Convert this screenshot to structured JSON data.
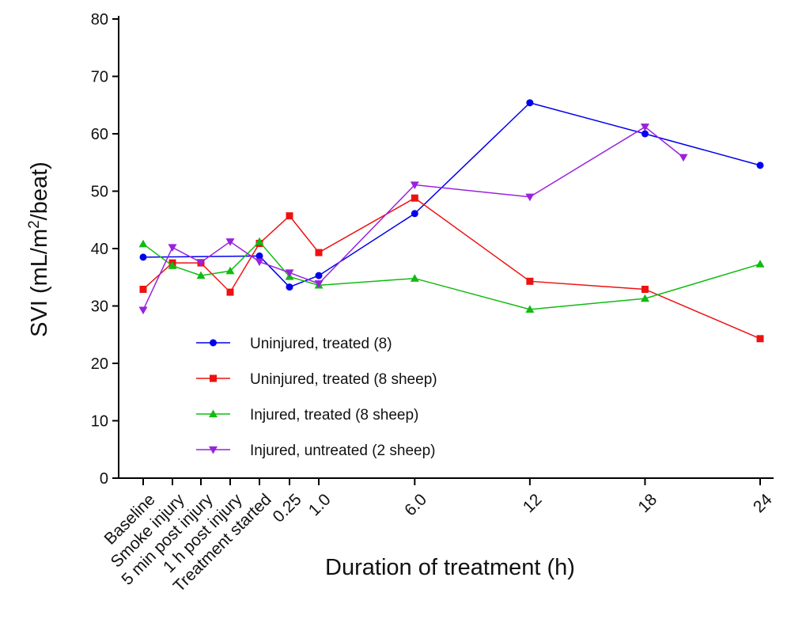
{
  "chart_data": {
    "type": "line",
    "title": "",
    "xlabel": "Duration of treatment (h)",
    "ylabel": {
      "prefix": "SVI (mL/m",
      "superscript": "2",
      "suffix": "/beat)"
    },
    "ylim": [
      0,
      80
    ],
    "y_ticks": [
      0,
      10,
      20,
      30,
      40,
      50,
      60,
      70,
      80
    ],
    "x_scale": "categorical-then-hours",
    "x_tick_labels": [
      "Baseline",
      "Smoke injury",
      "5 min post injury",
      "1 h post injury",
      "Treatment started",
      "0.25",
      "1.0",
      "6.0",
      "12",
      "18",
      "24"
    ],
    "grid": false,
    "legend_position": "center-left",
    "series": [
      {
        "name": "Uninjured, treated (8)",
        "color": "#0000ee",
        "marker": "circle",
        "points": [
          {
            "x": "Baseline",
            "y": 38.5
          },
          {
            "x": "Treatment started",
            "y": 38.7
          },
          {
            "x": "0.25",
            "y": 33.3
          },
          {
            "x": "1.0",
            "y": 35.3
          },
          {
            "x": "6.0",
            "y": 46.1
          },
          {
            "x": "12",
            "y": 65.4
          },
          {
            "x": "18",
            "y": 60.0
          },
          {
            "x": "24",
            "y": 54.5
          }
        ]
      },
      {
        "name": "Uninjured, treated (8 sheep)",
        "color": "#ee1111",
        "marker": "square",
        "points": [
          {
            "x": "Baseline",
            "y": 32.9
          },
          {
            "x": "Smoke injury",
            "y": 37.5
          },
          {
            "x": "5 min post injury",
            "y": 37.5
          },
          {
            "x": "1 h post injury",
            "y": 32.4
          },
          {
            "x": "Treatment started",
            "y": 40.9
          },
          {
            "x": "0.25",
            "y": 45.7
          },
          {
            "x": "1.0",
            "y": 39.3
          },
          {
            "x": "6.0",
            "y": 48.8
          },
          {
            "x": "12",
            "y": 34.3
          },
          {
            "x": "18",
            "y": 32.9
          },
          {
            "x": "24",
            "y": 24.3
          }
        ]
      },
      {
        "name": "Injured, treated (8 sheep)",
        "color": "#11bb11",
        "marker": "triangle-up",
        "points": [
          {
            "x": "Baseline",
            "y": 40.8
          },
          {
            "x": "Smoke injury",
            "y": 37.0
          },
          {
            "x": "5 min post injury",
            "y": 35.3
          },
          {
            "x": "1 h post injury",
            "y": 36.1
          },
          {
            "x": "Treatment started",
            "y": 41.2
          },
          {
            "x": "0.25",
            "y": 35.1
          },
          {
            "x": "1.0",
            "y": 33.6
          },
          {
            "x": "6.0",
            "y": 34.8
          },
          {
            "x": "12",
            "y": 29.4
          },
          {
            "x": "18",
            "y": 31.3
          },
          {
            "x": "24",
            "y": 37.3
          }
        ]
      },
      {
        "name": "Injured, untreated (2 sheep)",
        "color": "#9922dd",
        "marker": "triangle-down",
        "points": [
          {
            "x": "Baseline",
            "y": 29.3
          },
          {
            "x": "Smoke injury",
            "y": 40.2
          },
          {
            "x": "5 min post injury",
            "y": 37.6
          },
          {
            "x": "1 h post injury",
            "y": 41.2
          },
          {
            "x": "Treatment started",
            "y": 37.7
          },
          {
            "x": "0.25",
            "y": 35.8
          },
          {
            "x": "1.0",
            "y": 33.9
          },
          {
            "x": "6.0",
            "y": 51.1
          },
          {
            "x": "12",
            "y": 49.0
          },
          {
            "x": "18",
            "y": 61.2
          },
          {
            "x": "20",
            "y": 55.9
          }
        ]
      }
    ]
  }
}
